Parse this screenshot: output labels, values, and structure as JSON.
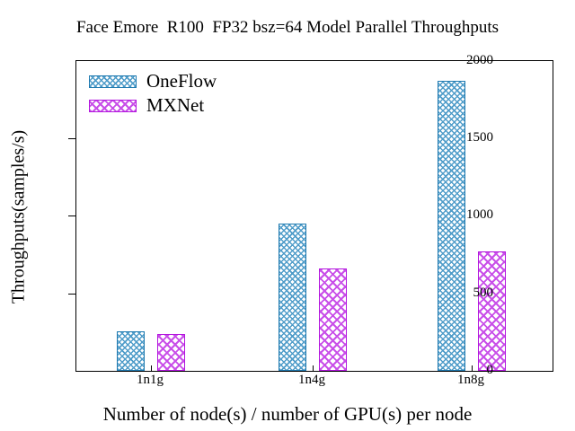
{
  "chart_data": {
    "type": "bar",
    "title": "Face Emore  R100  FP32 bsz=64 Model Parallel Throughputs",
    "xlabel": "Number of node(s) / number of GPU(s) per node",
    "ylabel": "Throughputs(samples/s)",
    "categories": [
      "1n1g",
      "1n4g",
      "1n8g"
    ],
    "series": [
      {
        "name": "OneFlow",
        "color": "#1f7ab0",
        "values": [
          245,
          940,
          1860
        ]
      },
      {
        "name": "MXNet",
        "color": "#b315de",
        "values": [
          225,
          650,
          760
        ]
      }
    ],
    "ylim": [
      0,
      2000
    ],
    "yticks": [
      0,
      500,
      1000,
      1500,
      2000
    ],
    "grid": "off",
    "legend_position": "top-left-inside"
  }
}
